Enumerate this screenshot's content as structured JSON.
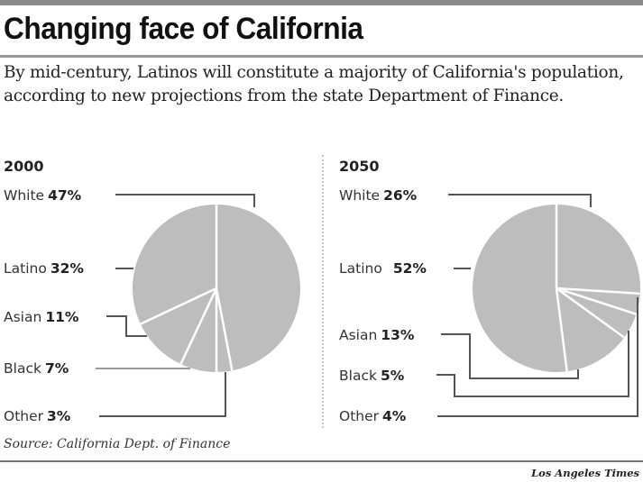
{
  "header": {
    "title": "Changing face of California",
    "intro": "By mid-century, Latinos will constitute a majority of California's population, according to new projections from the state Department of Finance."
  },
  "footer": {
    "source": "Source: California Dept. of Finance",
    "credit": "Los Angeles Times"
  },
  "colors": {
    "slice_fill": "#bdbdbd",
    "slice_separator": "#ffffff",
    "leader_dark": "#555555",
    "leader_light": "#9a9a9a"
  },
  "chart_data": [
    {
      "type": "pie",
      "title": "2000",
      "order": "clockwise from 12 o'clock",
      "slices": [
        {
          "label": "White",
          "value": 47,
          "display": "47%"
        },
        {
          "label": "Other",
          "value": 3,
          "display": "3%"
        },
        {
          "label": "Black",
          "value": 7,
          "display": "7%"
        },
        {
          "label": "Asian",
          "value": 11,
          "display": "11%"
        },
        {
          "label": "Latino",
          "value": 32,
          "display": "32%"
        }
      ],
      "legend_order": [
        "White",
        "Latino",
        "Asian",
        "Black",
        "Other"
      ],
      "units": "percent of population"
    },
    {
      "type": "pie",
      "title": "2050",
      "order": "clockwise from 12 o'clock",
      "slices": [
        {
          "label": "White",
          "value": 26,
          "display": "26%"
        },
        {
          "label": "Other",
          "value": 4,
          "display": "4%"
        },
        {
          "label": "Black",
          "value": 5,
          "display": "5%"
        },
        {
          "label": "Asian",
          "value": 13,
          "display": "13%"
        },
        {
          "label": "Latino",
          "value": 52,
          "display": "52%"
        }
      ],
      "legend_order": [
        "White",
        "Latino",
        "Asian",
        "Black",
        "Other"
      ],
      "units": "percent of population"
    }
  ]
}
